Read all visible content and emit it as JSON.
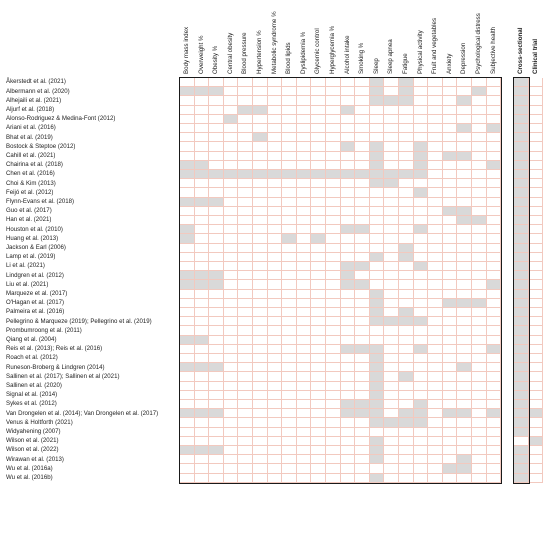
{
  "columns": [
    "Body mass index",
    "Overweight %",
    "Obesity %",
    "Central obesity",
    "Blood pressure",
    "Hypertension %",
    "Metabolic syndrome %",
    "Blood lipids",
    "Dyslipidemia %",
    "Glycemic control",
    "Hyperglycemia %",
    "Alcohol intake",
    "Smoking %",
    "Sleep",
    "Sleep apnea",
    "Fatigue",
    "Physical activity",
    "Fruit and vegetables",
    "Anxiety",
    "Depression",
    "Psychological distress",
    "Subjective health"
  ],
  "design_columns": [
    "Cross-sectional",
    "Clinical trial"
  ],
  "rows": [
    {
      "study": "Åkerstedt et al. (2021)",
      "filled": [
        13,
        15
      ],
      "design": [
        0
      ]
    },
    {
      "study": "Albermann et al. (2020)",
      "filled": [
        0,
        1,
        2,
        13,
        15,
        20
      ],
      "design": [
        0
      ]
    },
    {
      "study": "Alhejaili et al. (2021)",
      "filled": [
        13,
        14,
        15,
        19
      ],
      "design": [
        0
      ]
    },
    {
      "study": "Aljurf et al. (2018)",
      "filled": [
        4,
        5,
        11
      ],
      "design": [
        0
      ]
    },
    {
      "study": "Alonso-Rodriguez & Medina-Font (2012)",
      "filled": [
        3
      ],
      "design": [
        0
      ]
    },
    {
      "study": "Ariani et al. (2016)",
      "filled": [
        19,
        21
      ],
      "design": [
        0
      ]
    },
    {
      "study": "Bhat et al. (2019)",
      "filled": [
        5
      ],
      "design": [
        0
      ]
    },
    {
      "study": "Bostock & Steptoe (2012)",
      "filled": [
        11,
        13,
        16
      ],
      "design": [
        0
      ]
    },
    {
      "study": "Cahill et al. (2021)",
      "filled": [
        13,
        16,
        18,
        19
      ],
      "design": [
        0
      ]
    },
    {
      "study": "Chairina et al. (2018)",
      "filled": [
        0,
        1,
        13,
        16,
        21
      ],
      "design": [
        0
      ]
    },
    {
      "study": "Chen et al. (2016)",
      "filled": [
        0,
        1,
        2,
        3,
        4,
        5,
        6,
        7,
        8,
        9,
        10,
        11,
        12,
        13,
        14,
        15,
        16
      ],
      "design": [
        0
      ]
    },
    {
      "study": "Choi & Kim (2013)",
      "filled": [
        13,
        14
      ],
      "design": [
        0
      ]
    },
    {
      "study": "Feijó et al. (2012)",
      "filled": [
        16
      ],
      "design": [
        0
      ]
    },
    {
      "study": "Flynn-Evans et al. (2018)",
      "filled": [
        0,
        1,
        2
      ],
      "design": [
        0
      ]
    },
    {
      "study": "Guo et al. (2017)",
      "filled": [
        18,
        19
      ],
      "design": [
        0
      ]
    },
    {
      "study": "Han et al. (2021)",
      "filled": [
        19,
        20
      ],
      "design": [
        0
      ]
    },
    {
      "study": "Houston et al. (2010)",
      "filled": [
        0,
        11,
        12,
        16
      ],
      "design": [
        0
      ]
    },
    {
      "study": "Huang et al. (2013)",
      "filled": [
        0,
        7,
        9
      ],
      "design": [
        0
      ]
    },
    {
      "study": "Jackson & Earl (2006)",
      "filled": [
        15
      ],
      "design": [
        0
      ]
    },
    {
      "study": "Lamp et al. (2019)",
      "filled": [
        13,
        15
      ],
      "design": [
        0
      ]
    },
    {
      "study": "Li et al. (2021)",
      "filled": [
        11,
        12,
        16
      ],
      "design": [
        0
      ]
    },
    {
      "study": "Lindgren et al. (2012)",
      "filled": [
        0,
        1,
        2,
        11
      ],
      "design": [
        0
      ]
    },
    {
      "study": "Liu et al. (2021)",
      "filled": [
        0,
        1,
        2,
        11,
        12,
        21
      ],
      "design": [
        0
      ]
    },
    {
      "study": "Marqueze et al. (2017)",
      "filled": [
        13
      ],
      "design": [
        0
      ]
    },
    {
      "study": "O'Hagan et al. (2017)",
      "filled": [
        13,
        18,
        19,
        20
      ],
      "design": [
        0
      ]
    },
    {
      "study": "Palmeira et al. (2016)",
      "filled": [
        13,
        15
      ],
      "design": [
        0
      ]
    },
    {
      "study": "Pellegrino & Marqueze (2019); Pellegrino et al. (2019)",
      "filled": [
        13,
        14,
        15,
        16
      ],
      "design": [
        0
      ]
    },
    {
      "study": "Prombumroong et al. (2011)",
      "filled": [],
      "design": [
        0
      ]
    },
    {
      "study": "Qiang et al. (2004)",
      "filled": [
        0,
        1
      ],
      "design": [
        0
      ]
    },
    {
      "study": "Reis et al. (2013); Reis et al. (2016)",
      "filled": [
        11,
        12,
        13,
        16,
        21
      ],
      "design": [
        0
      ]
    },
    {
      "study": "Roach et al. (2012)",
      "filled": [
        13
      ],
      "design": [
        0
      ]
    },
    {
      "study": "Runeson-Broberg & Lindgren (2014)",
      "filled": [
        0,
        1,
        2,
        13,
        19
      ],
      "design": [
        0
      ]
    },
    {
      "study": "Sallinen et al. (2017); Sallinen et al (2021)",
      "filled": [
        13,
        15
      ],
      "design": [
        0
      ]
    },
    {
      "study": "Sallinen et al. (2020)",
      "filled": [
        13
      ],
      "design": [
        0
      ]
    },
    {
      "study": "Signal et al. (2014)",
      "filled": [
        13
      ],
      "design": [
        0
      ]
    },
    {
      "study": "Sykes et al. (2012)",
      "filled": [
        11,
        12,
        13,
        16
      ],
      "design": [
        0
      ]
    },
    {
      "study": "Van Drongelen et al. (2014); Van Drongelen et al. (2017)",
      "filled": [
        0,
        1,
        2,
        11,
        12,
        13,
        15,
        16,
        18,
        19,
        21
      ],
      "design": [
        0,
        1
      ]
    },
    {
      "study": "Venus & Holtforth (2021)",
      "filled": [
        13,
        14,
        15,
        16
      ],
      "design": [
        0
      ]
    },
    {
      "study": "Widyahening (2007)",
      "filled": [],
      "design": [
        0
      ]
    },
    {
      "study": "Wilson et al. (2021)",
      "filled": [
        13
      ],
      "design": [
        1
      ]
    },
    {
      "study": "Wilson et al. (2022)",
      "filled": [
        0,
        1,
        2,
        13
      ],
      "design": [
        0
      ]
    },
    {
      "study": "Wirawan et al. (2013)",
      "filled": [
        13,
        19
      ],
      "design": [
        0
      ]
    },
    {
      "study": "Wu et al. (2016a)",
      "filled": [
        18,
        19
      ],
      "design": [
        0
      ]
    },
    {
      "study": "Wu et al. (2016b)",
      "filled": [
        13
      ],
      "design": [
        0
      ]
    }
  ]
}
